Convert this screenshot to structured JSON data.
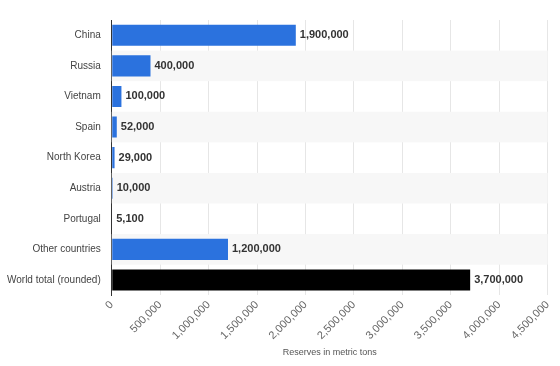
{
  "chart_data": {
    "type": "bar",
    "orientation": "horizontal",
    "categories": [
      "China",
      "Russia",
      "Vietnam",
      "Spain",
      "North Korea",
      "Austria",
      "Portugal",
      "Other countries",
      "World total (rounded)"
    ],
    "values": [
      1900000,
      400000,
      100000,
      52000,
      29000,
      10000,
      5100,
      1200000,
      3700000
    ],
    "value_labels": [
      "1,900,000",
      "400,000",
      "100,000",
      "52,000",
      "29,000",
      "10,000",
      "5,100",
      "1,200,000",
      "3,700,000"
    ],
    "data_labels": true,
    "colors": [
      "#2b72de",
      "#2b72de",
      "#2b72de",
      "#2b72de",
      "#2b72de",
      "#2b72de",
      "#2b72de",
      "#2b72de",
      "#000000"
    ],
    "x_label": "Reserves in metric tons",
    "xlim": [
      0,
      4500000
    ],
    "xticks": [
      0,
      {
        "value": 500000,
        "label": "500,000"
      },
      {
        "value": 1000000,
        "label": "1,000,000"
      },
      {
        "value": 1500000,
        "label": "1,500,000"
      },
      {
        "value": 2000000,
        "label": "2,000,000"
      },
      {
        "value": 2500000,
        "label": "2,500,000"
      },
      {
        "value": 3000000,
        "label": "3,000,000"
      },
      {
        "value": 3500000,
        "label": "3,500,000"
      },
      {
        "value": 4000000,
        "label": "4,000,000"
      },
      {
        "value": 4500000,
        "label": "4,500,000"
      }
    ],
    "grid": true
  }
}
